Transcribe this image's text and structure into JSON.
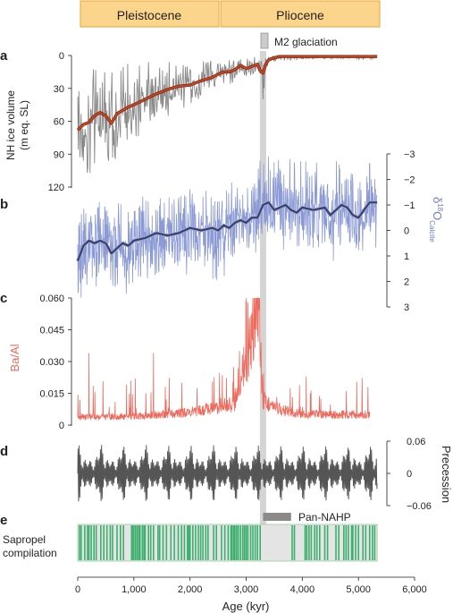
{
  "panel_letters": [
    "a",
    "b",
    "c",
    "d",
    "e"
  ],
  "epochs": [
    {
      "label": "Pleistocene",
      "start": 0,
      "end": 2580
    },
    {
      "label": "Pliocene",
      "start": 2580,
      "end": 5333
    }
  ],
  "m2": {
    "label": "M2 glaciation",
    "age": 3300
  },
  "pan_nahp": {
    "label": "Pan-NAHP",
    "start": 3300,
    "end": 3800
  },
  "colors": {
    "epoch_fill": "#fbd58b",
    "epoch_stroke": "#e9a637",
    "gray_series": "#888888",
    "red_smooth": "#d8401d",
    "blue_series": "#8b9ad4",
    "blue_smooth": "#363b63",
    "ylabel_blue": "#6e7fc6",
    "ba": "#ee6a5d",
    "ylabel_ba": "#ee6a5d",
    "precession": "#555555",
    "sapropel": "#3db06e",
    "sapropel_bg": "#e4e4e4",
    "m2_band": "#d4d4d4",
    "axis": "#231f20"
  },
  "chart_data": [
    {
      "panel": "a",
      "type": "line",
      "ylabel": "NH ice volume\n(m eq. SL)",
      "ylim": [
        0,
        120
      ],
      "y_inverted": true,
      "y_ticks": [
        "0",
        "30",
        "60",
        "90",
        "120"
      ],
      "series": [
        {
          "kind": "raw",
          "x": [
            0,
            100,
            200,
            300,
            400,
            500,
            600,
            700,
            800,
            900,
            1000,
            1200,
            1400,
            1600,
            1800,
            2000,
            2200,
            2400,
            2600,
            2700,
            2800,
            3000,
            3100,
            3200,
            3250,
            3300,
            3350,
            3400,
            3600,
            3800,
            4000,
            4500,
            5000,
            5333
          ],
          "y": [
            85,
            95,
            60,
            68,
            55,
            82,
            90,
            70,
            78,
            64,
            70,
            55,
            52,
            45,
            42,
            40,
            32,
            28,
            22,
            18,
            12,
            8,
            6,
            12,
            18,
            40,
            15,
            5,
            5,
            4,
            3,
            2,
            2,
            1
          ]
        },
        {
          "kind": "smooth",
          "x": [
            0,
            100,
            200,
            300,
            400,
            500,
            600,
            700,
            800,
            900,
            1000,
            1200,
            1400,
            1600,
            1800,
            2000,
            2200,
            2400,
            2500,
            2600,
            2700,
            2800,
            2900,
            3000,
            3100,
            3200,
            3250,
            3300,
            3350,
            3400,
            3500,
            3600,
            3800,
            4000,
            4500,
            5000,
            5333
          ],
          "y": [
            68,
            63,
            61,
            55,
            52,
            55,
            62,
            53,
            50,
            47,
            45,
            40,
            35,
            31,
            28,
            27,
            23,
            20,
            17,
            15,
            15,
            13,
            9,
            12,
            10,
            8,
            14,
            16,
            8,
            4,
            2,
            1,
            1,
            1,
            1,
            1,
            1
          ]
        }
      ]
    },
    {
      "panel": "b",
      "type": "line",
      "ylabel_main": "δ",
      "ylabel_sup": "18",
      "ylabel_rest": "O",
      "ylabel_sub": "Calcite",
      "ylim": [
        -3,
        3
      ],
      "y_inverted": true,
      "y_ticks": [
        "−3",
        "−2",
        "−1",
        "0",
        "1",
        "2",
        "3"
      ],
      "series": [
        {
          "kind": "raw",
          "x": [
            0,
            500,
            1000,
            1500,
            2000,
            2500,
            3000,
            3500,
            4000,
            4500,
            5000,
            5333
          ],
          "y": [
            1.6,
            1.0,
            0.6,
            0.4,
            0.1,
            -0.2,
            -0.4,
            -0.6,
            -0.6,
            -0.6,
            -0.5,
            -0.7
          ]
        },
        {
          "kind": "smooth",
          "x": [
            0,
            100,
            200,
            300,
            400,
            500,
            600,
            700,
            800,
            900,
            1000,
            1200,
            1400,
            1600,
            1800,
            2000,
            2200,
            2400,
            2500,
            2600,
            2700,
            2800,
            2900,
            3000,
            3100,
            3200,
            3300,
            3400,
            3500,
            3600,
            3700,
            3800,
            3900,
            4000,
            4200,
            4400,
            4500,
            4600,
            4700,
            4800,
            4900,
            5000,
            5100,
            5200,
            5333
          ],
          "y": [
            1.2,
            0.6,
            0.4,
            0.5,
            0.4,
            0.5,
            0.9,
            0.7,
            0.5,
            0.6,
            0.4,
            0.3,
            0.1,
            0.2,
            0.1,
            -0.1,
            0.0,
            -0.1,
            0.0,
            -0.2,
            -0.1,
            -0.3,
            -0.4,
            -0.3,
            -0.5,
            -0.5,
            -1.0,
            -1.1,
            -0.8,
            -0.9,
            -1.0,
            -0.8,
            -0.7,
            -0.9,
            -0.8,
            -0.9,
            -0.6,
            -0.8,
            -1.0,
            -0.9,
            -0.6,
            -0.5,
            -0.8,
            -1.1,
            -1.1
          ]
        }
      ]
    },
    {
      "panel": "c",
      "type": "line",
      "ylabel": "Ba/Al",
      "ylim": [
        0,
        0.06
      ],
      "y_ticks": [
        "0",
        "0.015",
        "0.030",
        "0.045",
        "0.060"
      ],
      "series": [
        {
          "kind": "raw",
          "x": [
            0,
            1000,
            2000,
            2800,
            3100,
            3200,
            3300,
            3500,
            4000,
            4500,
            5000,
            5200
          ],
          "y": [
            0.004,
            0.004,
            0.006,
            0.01,
            0.042,
            0.06,
            0.012,
            0.008,
            0.005,
            0.005,
            0.005,
            0.005
          ]
        }
      ]
    },
    {
      "panel": "d",
      "type": "line",
      "ylabel": "Precession",
      "ylim": [
        -0.06,
        0.06
      ],
      "y_ticks": [
        "0.06",
        "0",
        "−0.06"
      ],
      "series": [
        {
          "kind": "raw",
          "period_kyr": 21,
          "amplitude": [
            0.02,
            0.045
          ]
        }
      ]
    },
    {
      "panel": "e",
      "type": "bar",
      "ylabel": "Sapropel\ncompilation",
      "x_range": [
        0,
        5333
      ],
      "events": [
        30,
        60,
        125,
        175,
        200,
        240,
        290,
        330,
        410,
        465,
        520,
        580,
        620,
        700,
        760,
        815,
        960,
        985,
        1000,
        1030,
        1060,
        1090,
        1110,
        1150,
        1180,
        1200,
        1260,
        1300,
        1350,
        1430,
        1460,
        1520,
        1580,
        1660,
        1720,
        1790,
        1850,
        1900,
        1955,
        1980,
        2000,
        2050,
        2100,
        2150,
        2190,
        2230,
        2280,
        2320,
        2420,
        2470,
        2560,
        2620,
        2680,
        2730,
        2750,
        2780,
        2800,
        2830,
        2860,
        2900,
        2940,
        2970,
        3000,
        3030,
        3080,
        3120,
        3160,
        3200,
        3250,
        3820,
        3860,
        4050,
        4080,
        4120,
        4160,
        4220,
        4260,
        4310,
        4400,
        4450,
        4600,
        4650,
        4740,
        4780,
        4820,
        4880,
        4900,
        4950,
        5000,
        5080,
        5130,
        5200,
        5250,
        5290
      ]
    }
  ],
  "x_axis": {
    "label": "Age (kyr)",
    "range": [
      0,
      6000
    ],
    "ticks": [
      {
        "value": 0,
        "label": "0"
      },
      {
        "value": 1000,
        "label": "1,000"
      },
      {
        "value": 2000,
        "label": "2,000"
      },
      {
        "value": 3000,
        "label": "3,000"
      },
      {
        "value": 4000,
        "label": "4,000"
      },
      {
        "value": 5000,
        "label": "5,000"
      },
      {
        "value": 6000,
        "label": "6,000"
      }
    ]
  }
}
